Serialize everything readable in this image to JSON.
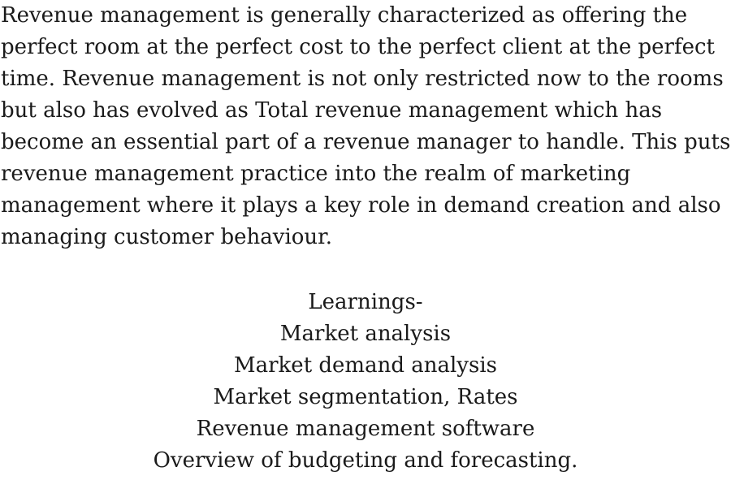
{
  "paragraph": {
    "lines": [
      "Revenue management is generally characterized as offering the",
      "perfect room at the perfect cost to the perfect client at the perfect",
      "time. Revenue management is not only restricted now to the rooms",
      "but also has evolved as Total revenue management which has",
      "become an essential part of a revenue manager to handle. This puts",
      "revenue management practice into the realm of marketing",
      "management where it plays a key role in demand creation and also",
      "managing customer behaviour."
    ]
  },
  "learnings": {
    "heading": "Learnings-",
    "items": [
      "Market analysis",
      "Market demand analysis",
      "Market segmentation, Rates",
      "Revenue management software",
      "Overview of budgeting and forecasting."
    ]
  }
}
